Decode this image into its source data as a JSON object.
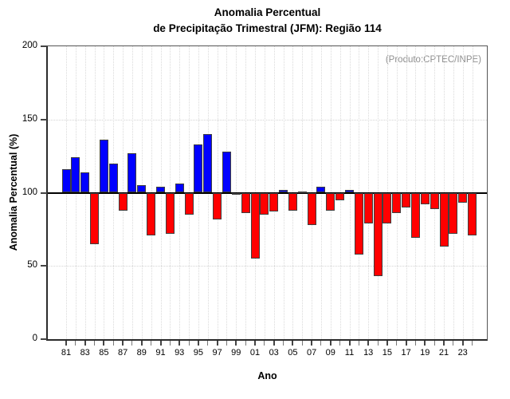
{
  "chart_data": {
    "type": "bar",
    "title_line1": "Anomalia Percentual",
    "title_line2": "de Precipitação Trimestral (JFM): Região 114",
    "annotation": "(Produto:CPTEC/INPE)",
    "xlabel": "Ano",
    "ylabel": "Anomalia Percentual (%)",
    "ylim": [
      0,
      200
    ],
    "baseline": 100,
    "y_ticks": [
      0,
      50,
      100,
      150,
      200
    ],
    "hgrid_at": [
      50,
      150
    ],
    "x_tick_labels": [
      "81",
      "83",
      "85",
      "87",
      "89",
      "91",
      "93",
      "95",
      "97",
      "99",
      "01",
      "03",
      "05",
      "07",
      "09",
      "11",
      "13",
      "15",
      "17",
      "19",
      "21",
      "23"
    ],
    "years": [
      1981,
      1982,
      1983,
      1984,
      1985,
      1986,
      1987,
      1988,
      1989,
      1990,
      1991,
      1992,
      1993,
      1994,
      1995,
      1996,
      1997,
      1998,
      1999,
      2000,
      2001,
      2002,
      2003,
      2004,
      2005,
      2006,
      2007,
      2008,
      2009,
      2010,
      2011,
      2012,
      2013,
      2014,
      2015,
      2016,
      2017,
      2018,
      2019,
      2020,
      2021,
      2022,
      2023,
      2024
    ],
    "values": [
      116,
      124,
      114,
      65,
      136,
      120,
      88,
      127,
      105,
      71,
      104,
      72,
      106,
      85,
      133,
      140,
      82,
      128,
      100,
      86,
      55,
      85,
      87,
      102,
      88,
      101,
      78,
      104,
      88,
      95,
      102,
      58,
      79,
      43,
      79,
      86,
      90,
      69,
      92,
      89,
      63,
      72,
      93,
      71
    ],
    "legend": "none",
    "grid": "dotted vertical per year; dotted horizontal at 50 and 150",
    "colors": {
      "bar_above": "#0000ff",
      "bar_below": "#ff0000",
      "bar_outline": "#3f3f3f",
      "baseline_line": "#000000",
      "major_tick": "#444444",
      "minor_tick": "#777777",
      "annotation_text": "#8f8f8f",
      "text": "#000000",
      "background": "#ffffff"
    }
  }
}
